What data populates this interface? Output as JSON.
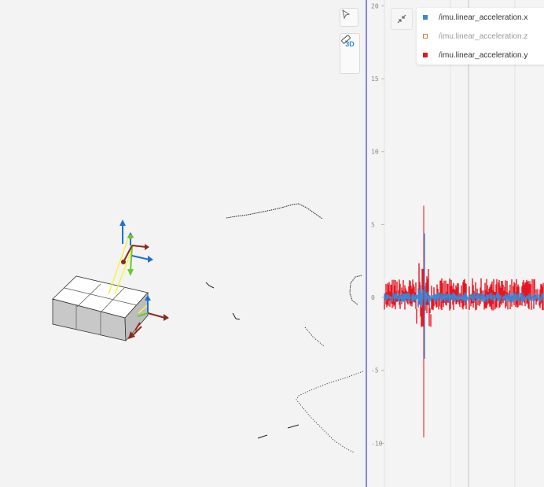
{
  "viewport": {
    "mode_label": "3D"
  },
  "plot": {
    "y_ticks": [
      "20",
      "15",
      "10",
      "5",
      "0",
      "-5",
      "-10"
    ],
    "y_values": [
      20,
      15,
      10,
      5,
      0,
      -5,
      -10
    ],
    "ylim": [
      -13,
      20.4
    ],
    "legend": [
      {
        "label": "/imu.linear_acceleration.x",
        "color": "#3d86d6",
        "filled": true,
        "dim": false
      },
      {
        "label": "/imu.linear_acceleration.z",
        "color": "#e07a2e",
        "filled": false,
        "dim": true
      },
      {
        "label": "/imu.linear_acceleration.y",
        "color": "#e8151f",
        "filled": true,
        "dim": false
      }
    ]
  },
  "colors": {
    "accent": "#2b8ae2",
    "divider": "#8b82f0",
    "series_x": "#3d86d6",
    "series_y": "#e8151f"
  }
}
